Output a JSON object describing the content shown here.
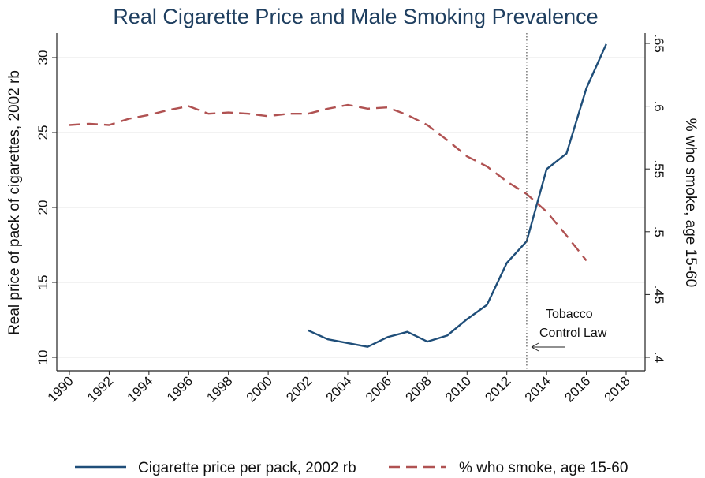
{
  "chart_data": {
    "type": "line",
    "title": "Real Cigarette Price and Male Smoking Prevalence",
    "xlabel": "",
    "ylabel": "Real price of pack of cigarettes, 2002 rb",
    "y2label": "% who smoke, age 15-60",
    "x_ticks": [
      "1990",
      "1992",
      "1994",
      "1996",
      "1998",
      "2000",
      "2002",
      "2004",
      "2006",
      "2008",
      "2010",
      "2012",
      "2014",
      "2016",
      "2018"
    ],
    "xlim": [
      1990,
      2018
    ],
    "ylim": [
      10,
      31
    ],
    "y_ticks": [
      "10",
      "15",
      "20",
      "25",
      "30"
    ],
    "y2lim": [
      0.4,
      0.65
    ],
    "y2_ticks": [
      ".4",
      ".45",
      ".5",
      ".55",
      ".6",
      ".65"
    ],
    "grid": "horizontal",
    "legend_position": "bottom",
    "series": [
      {
        "name": "Cigarette price per pack, 2002 rb",
        "axis": "left",
        "color": "#1f4e79",
        "style": "solid",
        "x": [
          2002,
          2003,
          2004,
          2005,
          2006,
          2007,
          2008,
          2009,
          2010,
          2011,
          2012,
          2013,
          2014,
          2015,
          2016,
          2017
        ],
        "y": [
          11.8,
          11.2,
          10.95,
          10.7,
          11.35,
          11.7,
          11.05,
          11.45,
          12.55,
          13.5,
          16.3,
          17.75,
          22.55,
          23.6,
          27.95,
          30.9
        ]
      },
      {
        "name": "% who smoke, age 15-60",
        "axis": "right",
        "color": "#b05252",
        "style": "dashed",
        "x": [
          1990,
          1991,
          1992,
          1993,
          1994,
          1995,
          1996,
          1997,
          1998,
          1999,
          2000,
          2001,
          2002,
          2003,
          2004,
          2005,
          2006,
          2007,
          2008,
          2009,
          2010,
          2011,
          2012,
          2013,
          2014,
          2015,
          2016
        ],
        "y": [
          0.585,
          0.586,
          0.585,
          0.59,
          0.593,
          0.597,
          0.6,
          0.594,
          0.595,
          0.594,
          0.592,
          0.594,
          0.594,
          0.598,
          0.601,
          0.598,
          0.599,
          0.593,
          0.585,
          0.573,
          0.56,
          0.552,
          0.54,
          0.53,
          0.516,
          0.497,
          0.477
        ]
      }
    ],
    "vline": {
      "x": 2013
    },
    "annotation": {
      "line1": "Tobacco",
      "line2": "Control Law"
    }
  }
}
